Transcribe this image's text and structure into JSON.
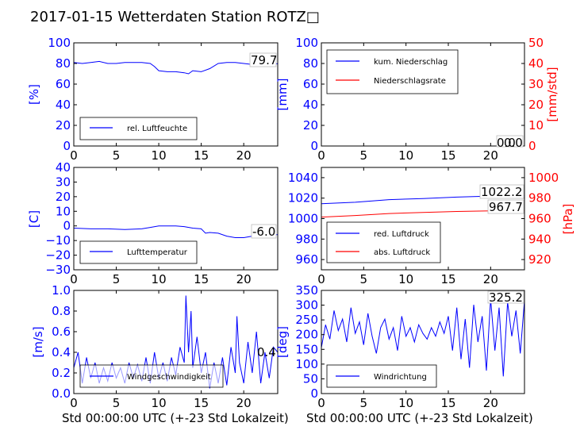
{
  "title": "2017-01-15 Wetterdaten Station ROTZ□",
  "xlabel": "Std 00:00:00 UTC (+-23 Std Lokalzeit)",
  "colors": {
    "primary": "#0000ff",
    "secondary": "#ff0000"
  },
  "chart_data": [
    {
      "id": "humidity",
      "type": "line",
      "ylabel": "[%]",
      "xlim": [
        0,
        24
      ],
      "ylim": [
        0,
        100
      ],
      "xticks": [
        "0",
        "5",
        "10",
        "15",
        "20"
      ],
      "yticks": [
        "0",
        "20",
        "40",
        "60",
        "80",
        "100"
      ],
      "legend_position": "lower-left",
      "current_value": "79.7",
      "series": [
        {
          "name": "rel. Luftfeuchte",
          "color": "#0000ff",
          "x": [
            0,
            1,
            2,
            3,
            4,
            5,
            6,
            7,
            8,
            9,
            9.5,
            10,
            11,
            12,
            13,
            13.5,
            14,
            15,
            16,
            17,
            18,
            19,
            20,
            21,
            22,
            23,
            24
          ],
          "y": [
            81,
            80,
            81,
            82,
            80,
            80,
            81,
            81,
            81,
            80,
            77,
            73,
            72,
            72,
            71,
            70,
            73,
            72,
            75,
            80,
            81,
            81,
            80,
            79,
            80,
            80,
            79.7
          ]
        }
      ]
    },
    {
      "id": "precipitation",
      "type": "line",
      "ylabel": "[mm]",
      "ylabel_right": "[mm/std]",
      "xlim": [
        0,
        24
      ],
      "ylim": [
        0,
        100
      ],
      "ylim_right": [
        0,
        50
      ],
      "xticks": [
        "0",
        "5",
        "10",
        "15",
        "20"
      ],
      "yticks": [
        "0",
        "20",
        "40",
        "60",
        "80",
        "100"
      ],
      "yticks_right": [
        "0",
        "10",
        "20",
        "30",
        "40",
        "50"
      ],
      "legend_position": "upper-left",
      "current_value": "0.0",
      "current_value_2": "0.0",
      "series": [
        {
          "name": "kum. Niederschlag",
          "color": "#0000ff",
          "x": [
            0,
            24
          ],
          "y": [
            0,
            0
          ]
        },
        {
          "name": "Niederschlagsrate",
          "color": "#ff0000",
          "axis": "right",
          "x": [
            0,
            24
          ],
          "y": [
            0,
            0
          ]
        }
      ]
    },
    {
      "id": "temperature",
      "type": "line",
      "ylabel": "[C]",
      "xlim": [
        0,
        24
      ],
      "ylim": [
        -30,
        40
      ],
      "xticks": [
        "0",
        "5",
        "10",
        "15",
        "20"
      ],
      "yticks": [
        "−30",
        "−20",
        "−10",
        "0",
        "10",
        "20",
        "30",
        "40"
      ],
      "legend_position": "lower-left",
      "current_value": "-6.0",
      "series": [
        {
          "name": "Lufttemperatur",
          "color": "#0000ff",
          "x": [
            0,
            2,
            4,
            6,
            8,
            9,
            10,
            11,
            12,
            13,
            14,
            15,
            15.5,
            16,
            17,
            18,
            19,
            20,
            21,
            22,
            23,
            24
          ],
          "y": [
            -1.5,
            -2,
            -2,
            -2.5,
            -2,
            -1,
            0,
            0,
            0,
            -0.5,
            -1.5,
            -2,
            -5,
            -4.5,
            -5,
            -7,
            -8,
            -8,
            -7,
            -6.5,
            -6,
            -6
          ]
        }
      ]
    },
    {
      "id": "pressure",
      "type": "line",
      "ylabel_right": "[hPa]",
      "xlim": [
        0,
        24
      ],
      "ylim": [
        950,
        1050
      ],
      "ylim_right": [
        910,
        1010
      ],
      "xticks": [
        "0",
        "5",
        "10",
        "15",
        "20"
      ],
      "yticks": [
        "960",
        "980",
        "1000",
        "1020",
        "1040"
      ],
      "yticks_right": [
        "920",
        "940",
        "960",
        "980",
        "1000"
      ],
      "legend_position": "lower-left",
      "current_value": "1022.2",
      "current_value_2": "967.7",
      "series": [
        {
          "name": "red. Luftdruck",
          "color": "#0000ff",
          "x": [
            0,
            4,
            8,
            12,
            16,
            20,
            24
          ],
          "y": [
            1014.5,
            1016,
            1018.5,
            1019.5,
            1021,
            1022,
            1022.2
          ]
        },
        {
          "name": "abs. Luftdruck",
          "color": "#ff0000",
          "axis": "right",
          "x": [
            0,
            4,
            8,
            12,
            16,
            20,
            24
          ],
          "y": [
            961.5,
            963,
            965,
            966,
            967,
            967.5,
            967.7
          ]
        }
      ]
    },
    {
      "id": "wind-speed",
      "type": "line",
      "ylabel": "[m/s]",
      "xlim": [
        0,
        24
      ],
      "ylim": [
        0,
        1.0
      ],
      "xticks": [
        "0",
        "5",
        "10",
        "15",
        "20"
      ],
      "yticks": [
        "0.0",
        "0.2",
        "0.4",
        "0.6",
        "0.8",
        "1.0"
      ],
      "legend_position": "lower-center",
      "current_value": "0.4",
      "series": [
        {
          "name": "Windgeschwindigkeit",
          "color": "#0000ff",
          "x": [
            0,
            0.5,
            1,
            1.5,
            2,
            2.5,
            3,
            3.5,
            4,
            4.5,
            5,
            5.5,
            6,
            6.5,
            7,
            7.5,
            8,
            8.5,
            9,
            9.5,
            10,
            10.5,
            11,
            11.5,
            12,
            12.5,
            13,
            13.2,
            13.5,
            13.8,
            14,
            14.5,
            15,
            15.5,
            16,
            16.5,
            17,
            17.5,
            18,
            18.5,
            19,
            19.2,
            19.5,
            20,
            20.5,
            21,
            21.5,
            22,
            22.5,
            23,
            23.5,
            24
          ],
          "y": [
            0.25,
            0.4,
            0.1,
            0.35,
            0.15,
            0.3,
            0.1,
            0.25,
            0.12,
            0.3,
            0.15,
            0.25,
            0.1,
            0.3,
            0.15,
            0.28,
            0.12,
            0.35,
            0.1,
            0.4,
            0.15,
            0.3,
            0.12,
            0.35,
            0.18,
            0.45,
            0.3,
            0.95,
            0.4,
            0.8,
            0.25,
            0.55,
            0.2,
            0.4,
            0.05,
            0.3,
            0.1,
            0.35,
            0.08,
            0.45,
            0.2,
            0.75,
            0.3,
            0.1,
            0.5,
            0.2,
            0.6,
            0.1,
            0.4,
            0.15,
            0.45,
            0.4
          ]
        }
      ]
    },
    {
      "id": "wind-direction",
      "type": "line",
      "ylabel": "[deg]",
      "xlim": [
        0,
        24
      ],
      "ylim": [
        0,
        360
      ],
      "xticks": [
        "0",
        "5",
        "10",
        "15",
        "20"
      ],
      "yticks": [
        "0",
        "50",
        "100",
        "150",
        "200",
        "250",
        "300",
        "350"
      ],
      "legend_position": "lower-left",
      "current_value": "325.2",
      "series": [
        {
          "name": "Windrichtung",
          "color": "#0000ff",
          "x": [
            0,
            0.5,
            1,
            1.5,
            2,
            2.5,
            3,
            3.5,
            4,
            4.5,
            5,
            5.5,
            6,
            6.5,
            7,
            7.5,
            8,
            8.5,
            9,
            9.5,
            10,
            10.5,
            11,
            11.5,
            12,
            12.5,
            13,
            13.5,
            14,
            14.5,
            15,
            15.5,
            16,
            16.5,
            17,
            17.5,
            18,
            18.5,
            19,
            19.5,
            20,
            20.5,
            21,
            21.5,
            22,
            22.5,
            23,
            23.5,
            24
          ],
          "y": [
            160,
            240,
            190,
            290,
            220,
            260,
            180,
            300,
            210,
            250,
            170,
            280,
            200,
            140,
            230,
            260,
            190,
            230,
            150,
            270,
            200,
            230,
            180,
            240,
            210,
            190,
            230,
            200,
            250,
            210,
            270,
            150,
            300,
            120,
            260,
            90,
            310,
            180,
            270,
            80,
            330,
            150,
            300,
            60,
            320,
            200,
            290,
            140,
            325
          ]
        }
      ]
    }
  ]
}
